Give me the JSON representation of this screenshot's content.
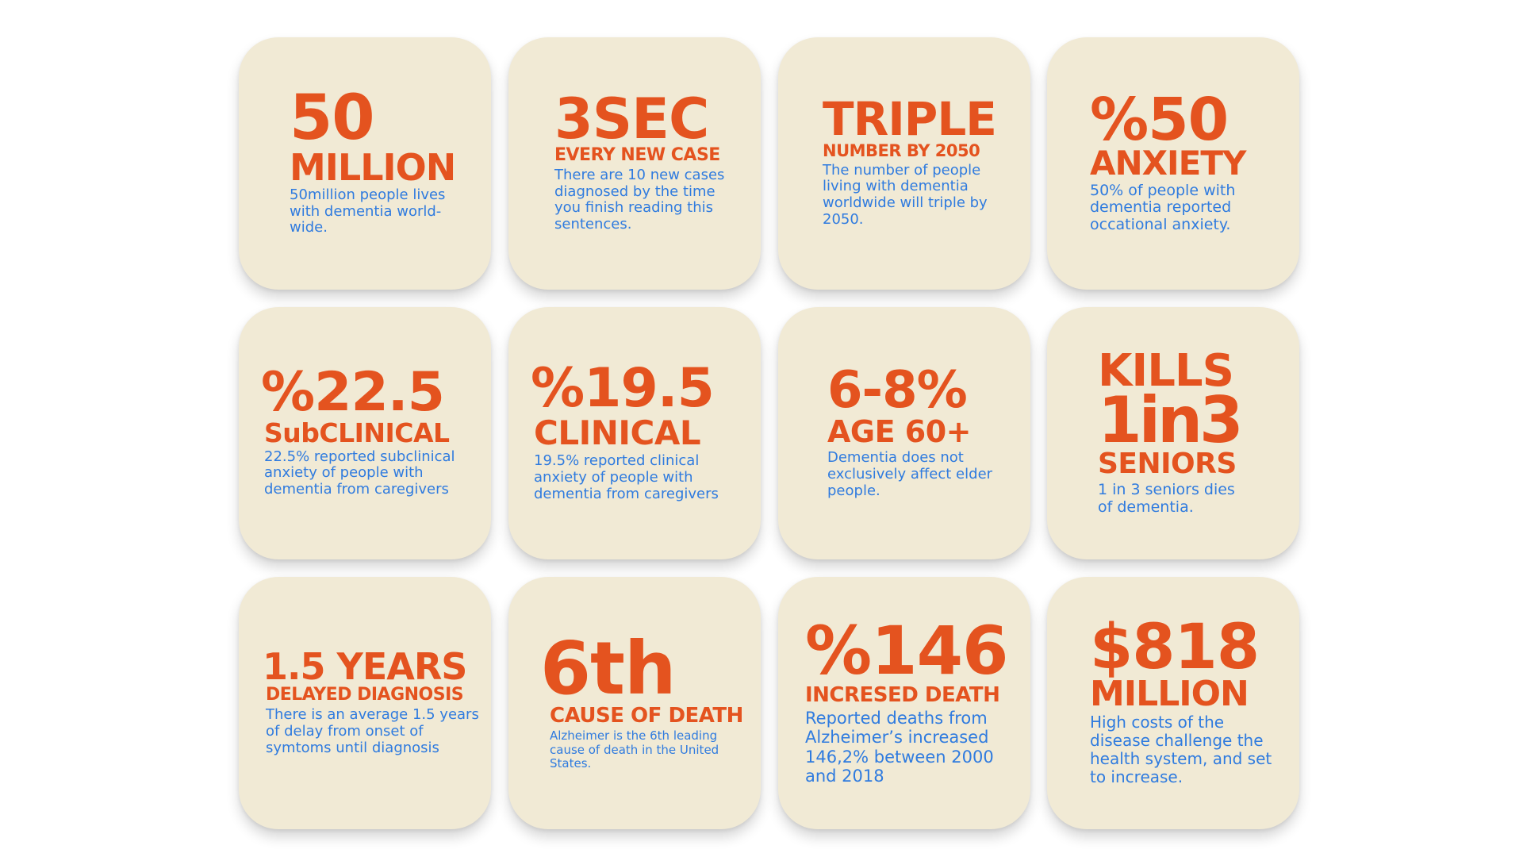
{
  "colors": {
    "background": "#ffffff",
    "card": "#f1ead5",
    "headline": "#e4531f",
    "body_text": "#2f7bdf"
  },
  "cards": [
    {
      "big": "50",
      "big2": "MILLION",
      "desc": "50million people lives with dementia world-wide."
    },
    {
      "big": "3SEC",
      "sub": "EVERY NEW CASE",
      "desc": "There are 10 new cases diagnosed by the time you finish reading this sentences."
    },
    {
      "big": "TRIPLE",
      "sub": "NUMBER BY 2050",
      "desc": "The number of people living with dementia worldwide will triple by 2050."
    },
    {
      "big": "%50",
      "big2": "ANXIETY",
      "desc": "50% of people with dementia reported occational anxiety."
    },
    {
      "big": "%22.5",
      "sub": "SubCLINICAL",
      "desc": "22.5% reported subclinical anxiety of people with dementia from caregivers"
    },
    {
      "big": "%19.5",
      "sub": "CLINICAL",
      "desc": "19.5% reported clinical anxiety of people with dementia from caregivers"
    },
    {
      "big": "6-8%",
      "sub": "AGE 60+",
      "desc": "Dementia does not exclusively affect elder people."
    },
    {
      "big": "KILLS",
      "big2": "1in3",
      "sub": "SENIORS",
      "desc": "1 in 3 seniors dies of dementia."
    },
    {
      "big": "1.5 YEARS",
      "sub": "DELAYED DIAGNOSIS",
      "desc": "There is an average 1.5 years of delay from onset of symtoms until diagnosis"
    },
    {
      "big": "6th",
      "sub": "CAUSE OF DEATH",
      "desc": "Alzheimer is the 6th leading cause of death in the United States."
    },
    {
      "big": "%146",
      "sub": "INCRESED DEATH",
      "desc": "Reported deaths from Alzheimer’s increased 146,2% between 2000 and 2018"
    },
    {
      "big": "$818",
      "big2": "MILLION",
      "desc": "High costs of the disease challenge the health system, and set to increase."
    }
  ]
}
